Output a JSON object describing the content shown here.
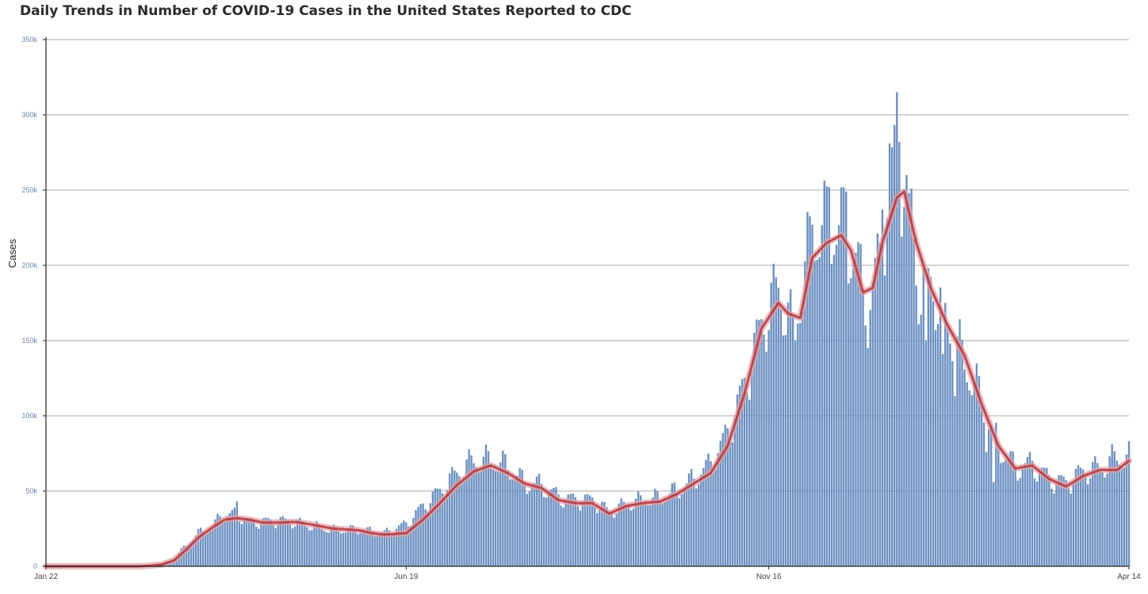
{
  "title": "Daily Trends in Number of COVID-19 Cases in the United States Reported to CDC",
  "chart_data": {
    "type": "bar",
    "title": "Daily Trends in Number of COVID-19 Cases in the United States Reported to CDC",
    "xlabel": "",
    "ylabel": "Cases",
    "ylim": [
      0,
      350000
    ],
    "yticks": [
      0,
      50000,
      100000,
      150000,
      200000,
      250000,
      300000,
      350000
    ],
    "ytick_labels": [
      "0",
      "50k",
      "100k",
      "150k",
      "200k",
      "250k",
      "300k",
      "350k"
    ],
    "xticks": [
      "Jan 22",
      "Jun 19",
      "Nov 16",
      "Apr 14"
    ],
    "x_start": "2020-01-22",
    "x_end": "2021-04-14",
    "grid": true,
    "colors": {
      "bars": "#6b8fc1",
      "bar_edge": "#4f72a6",
      "avg_line": "#b5363d",
      "avg_glow": "#e3a0a4",
      "grid": "#a9a9a9",
      "axis": "#222222"
    },
    "series": [
      {
        "type": "bar",
        "anchors": [
          [
            "2020-01-22",
            0
          ],
          [
            "2020-02-29",
            0
          ],
          [
            "2020-03-05",
            500
          ],
          [
            "2020-03-10",
            1500
          ],
          [
            "2020-03-15",
            5000
          ],
          [
            "2020-03-20",
            14000
          ],
          [
            "2020-03-25",
            22000
          ],
          [
            "2020-03-31",
            26000
          ],
          [
            "2020-04-03",
            33000
          ],
          [
            "2020-04-06",
            34000
          ],
          [
            "2020-04-10",
            35000
          ],
          [
            "2020-04-15",
            29000
          ],
          [
            "2020-04-24",
            30000
          ],
          [
            "2020-05-01",
            30000
          ],
          [
            "2020-05-10",
            27000
          ],
          [
            "2020-05-20",
            24000
          ],
          [
            "2020-05-30",
            24000
          ],
          [
            "2020-06-05",
            23000
          ],
          [
            "2020-06-10",
            22000
          ],
          [
            "2020-06-19",
            28000
          ],
          [
            "2020-06-26",
            40000
          ],
          [
            "2020-07-03",
            50000
          ],
          [
            "2020-07-10",
            62000
          ],
          [
            "2020-07-17",
            70000
          ],
          [
            "2020-07-24",
            70000
          ],
          [
            "2020-07-31",
            66000
          ],
          [
            "2020-08-07",
            55000
          ],
          [
            "2020-08-14",
            54000
          ],
          [
            "2020-08-21",
            46000
          ],
          [
            "2020-08-28",
            44000
          ],
          [
            "2020-09-04",
            44000
          ],
          [
            "2020-09-11",
            36000
          ],
          [
            "2020-09-18",
            41000
          ],
          [
            "2020-09-25",
            44000
          ],
          [
            "2020-10-02",
            45000
          ],
          [
            "2020-10-09",
            50000
          ],
          [
            "2020-10-16",
            58000
          ],
          [
            "2020-10-23",
            68000
          ],
          [
            "2020-10-30",
            88000
          ],
          [
            "2020-11-06",
            120000
          ],
          [
            "2020-11-13",
            160000
          ],
          [
            "2020-11-20",
            185000
          ],
          [
            "2020-11-26",
            155000
          ],
          [
            "2020-12-04",
            220000
          ],
          [
            "2020-12-10",
            225000
          ],
          [
            "2020-12-16",
            225000
          ],
          [
            "2020-12-22",
            205000
          ],
          [
            "2020-12-27",
            165000
          ],
          [
            "2021-01-02",
            215000
          ],
          [
            "2021-01-08",
            280000
          ],
          [
            "2021-01-12",
            240000
          ],
          [
            "2021-01-18",
            180000
          ],
          [
            "2021-01-22",
            190000
          ],
          [
            "2021-01-29",
            160000
          ],
          [
            "2021-02-05",
            135000
          ],
          [
            "2021-02-12",
            110000
          ],
          [
            "2021-02-19",
            80000
          ],
          [
            "2021-02-26",
            65000
          ],
          [
            "2021-03-05",
            68000
          ],
          [
            "2021-03-12",
            58000
          ],
          [
            "2021-03-19",
            55000
          ],
          [
            "2021-03-26",
            63000
          ],
          [
            "2021-04-02",
            65000
          ],
          [
            "2021-04-09",
            72000
          ],
          [
            "2021-04-14",
            72000
          ]
        ],
        "spikes": [
          [
            "2020-04-10",
            43000
          ],
          [
            "2020-12-04",
            227000
          ],
          [
            "2020-12-11",
            252000
          ],
          [
            "2020-12-18",
            249000
          ],
          [
            "2021-01-02",
            237000
          ],
          [
            "2021-01-05",
            281000
          ],
          [
            "2021-01-08",
            315000
          ],
          [
            "2021-01-09",
            282000
          ],
          [
            "2021-01-13",
            248000
          ],
          [
            "2021-01-14",
            251000
          ],
          [
            "2021-04-07",
            81000
          ]
        ],
        "dips": [
          [
            "2020-11-27",
            150000
          ],
          [
            "2020-12-26",
            160000
          ],
          [
            "2021-01-20",
            150000
          ],
          [
            "2021-01-27",
            141000
          ],
          [
            "2021-02-01",
            113000
          ],
          [
            "2021-02-14",
            76000
          ],
          [
            "2021-02-17",
            56000
          ]
        ],
        "weekly_amplitude": 0.12
      },
      {
        "type": "line",
        "anchors": [
          [
            "2020-01-22",
            0
          ],
          [
            "2020-02-29",
            0
          ],
          [
            "2020-03-05",
            400
          ],
          [
            "2020-03-10",
            1200
          ],
          [
            "2020-03-15",
            4000
          ],
          [
            "2020-03-20",
            11000
          ],
          [
            "2020-03-25",
            19000
          ],
          [
            "2020-03-31",
            26000
          ],
          [
            "2020-04-05",
            31000
          ],
          [
            "2020-04-10",
            32000
          ],
          [
            "2020-04-15",
            31000
          ],
          [
            "2020-04-21",
            29000
          ],
          [
            "2020-04-28",
            29000
          ],
          [
            "2020-05-04",
            29500
          ],
          [
            "2020-05-10",
            28000
          ],
          [
            "2020-05-20",
            25000
          ],
          [
            "2020-05-30",
            24000
          ],
          [
            "2020-06-05",
            22000
          ],
          [
            "2020-06-10",
            21000
          ],
          [
            "2020-06-19",
            22000
          ],
          [
            "2020-06-26",
            31000
          ],
          [
            "2020-07-03",
            42000
          ],
          [
            "2020-07-10",
            54000
          ],
          [
            "2020-07-17",
            63000
          ],
          [
            "2020-07-24",
            67000
          ],
          [
            "2020-07-31",
            62000
          ],
          [
            "2020-08-07",
            55000
          ],
          [
            "2020-08-14",
            52000
          ],
          [
            "2020-08-21",
            44000
          ],
          [
            "2020-08-28",
            42000
          ],
          [
            "2020-09-04",
            42000
          ],
          [
            "2020-09-11",
            35000
          ],
          [
            "2020-09-18",
            40000
          ],
          [
            "2020-09-25",
            42000
          ],
          [
            "2020-10-02",
            43000
          ],
          [
            "2020-10-09",
            48000
          ],
          [
            "2020-10-16",
            55000
          ],
          [
            "2020-10-23",
            62000
          ],
          [
            "2020-10-30",
            80000
          ],
          [
            "2020-11-06",
            115000
          ],
          [
            "2020-11-13",
            158000
          ],
          [
            "2020-11-20",
            175000
          ],
          [
            "2020-11-24",
            168000
          ],
          [
            "2020-11-29",
            165000
          ],
          [
            "2020-12-04",
            205000
          ],
          [
            "2020-12-10",
            215000
          ],
          [
            "2020-12-16",
            220000
          ],
          [
            "2020-12-20",
            210000
          ],
          [
            "2020-12-25",
            182000
          ],
          [
            "2020-12-29",
            185000
          ],
          [
            "2021-01-02",
            215000
          ],
          [
            "2021-01-08",
            245000
          ],
          [
            "2021-01-11",
            249000
          ],
          [
            "2021-01-16",
            215000
          ],
          [
            "2021-01-22",
            185000
          ],
          [
            "2021-01-29",
            160000
          ],
          [
            "2021-02-05",
            140000
          ],
          [
            "2021-02-12",
            108000
          ],
          [
            "2021-02-19",
            80000
          ],
          [
            "2021-02-26",
            65000
          ],
          [
            "2021-03-05",
            67000
          ],
          [
            "2021-03-12",
            58000
          ],
          [
            "2021-03-19",
            53000
          ],
          [
            "2021-03-26",
            60000
          ],
          [
            "2021-04-02",
            64000
          ],
          [
            "2021-04-09",
            64000
          ],
          [
            "2021-04-14",
            70000
          ]
        ]
      }
    ]
  }
}
